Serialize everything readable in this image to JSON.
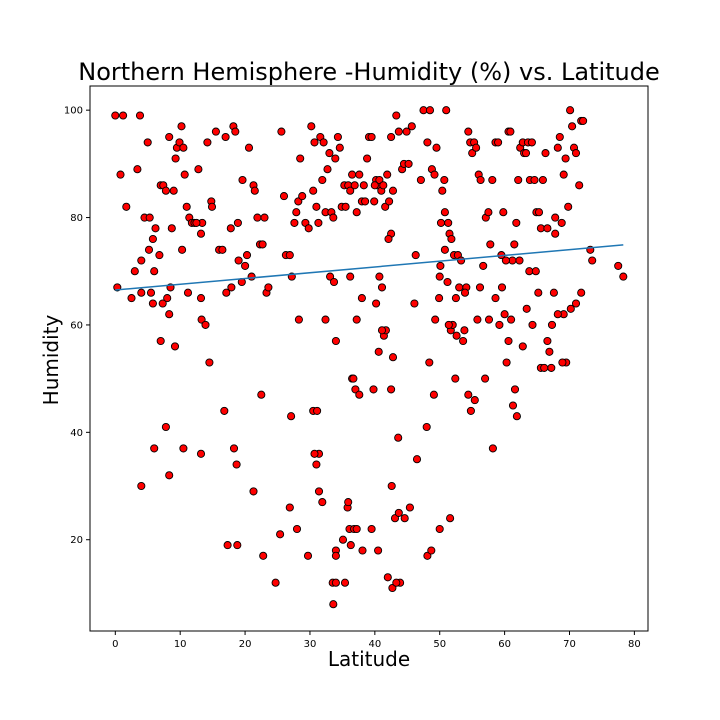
{
  "chart_data": {
    "type": "scatter",
    "title": "Northern Hemisphere -Humidity (%) vs. Latitude",
    "xlabel": "Latitude",
    "ylabel": "Humidity",
    "xlim": [
      -3.9,
      82.1
    ],
    "ylim": [
      3.0,
      104.5
    ],
    "xticks": [
      0,
      10,
      20,
      30,
      40,
      50,
      60,
      70,
      80
    ],
    "yticks": [
      20,
      40,
      60,
      80,
      100
    ],
    "grid": false,
    "marker_color": "#ff0000",
    "marker_edge_color": "#000000",
    "regression": {
      "x": [
        0.0,
        78.3
      ],
      "y": [
        66.5,
        74.9
      ],
      "color": "#1f77b4"
    },
    "points": [
      [
        0.0,
        99
      ],
      [
        1.2,
        99
      ],
      [
        3.8,
        99
      ],
      [
        0.3,
        67
      ],
      [
        0.8,
        88
      ],
      [
        1.7,
        82
      ],
      [
        2.5,
        65
      ],
      [
        3.0,
        70
      ],
      [
        3.4,
        89
      ],
      [
        4.0,
        72
      ],
      [
        4.5,
        80
      ],
      [
        5.0,
        94
      ],
      [
        5.3,
        80
      ],
      [
        5.8,
        76
      ],
      [
        5.2,
        74
      ],
      [
        6.2,
        78
      ],
      [
        6.8,
        73
      ],
      [
        7.0,
        86
      ],
      [
        7.4,
        86
      ],
      [
        7.8,
        85
      ],
      [
        8.0,
        65
      ],
      [
        8.3,
        95
      ],
      [
        8.7,
        78
      ],
      [
        9.0,
        85
      ],
      [
        9.3,
        91
      ],
      [
        9.5,
        93
      ],
      [
        9.9,
        94
      ],
      [
        10.2,
        97
      ],
      [
        10.5,
        93
      ],
      [
        10.7,
        88
      ],
      [
        11.0,
        82
      ],
      [
        11.4,
        80
      ],
      [
        11.8,
        79
      ],
      [
        12.2,
        79
      ],
      [
        12.8,
        89
      ],
      [
        13.2,
        77
      ],
      [
        13.4,
        79
      ],
      [
        14.2,
        94
      ],
      [
        14.8,
        83
      ],
      [
        14.9,
        82
      ],
      [
        15.5,
        96
      ],
      [
        16.0,
        74
      ],
      [
        16.5,
        74
      ],
      [
        17.0,
        95
      ],
      [
        17.8,
        78
      ],
      [
        18.2,
        97
      ],
      [
        18.5,
        96
      ],
      [
        18.9,
        79
      ],
      [
        19.6,
        87
      ],
      [
        20.0,
        71
      ],
      [
        20.3,
        73
      ],
      [
        20.6,
        93
      ],
      [
        21.0,
        69
      ],
      [
        21.3,
        86
      ],
      [
        21.5,
        85
      ],
      [
        21.9,
        80
      ],
      [
        22.3,
        75
      ],
      [
        22.7,
        75
      ],
      [
        23.0,
        80
      ],
      [
        23.3,
        66
      ],
      [
        23.6,
        67
      ],
      [
        5.5,
        66
      ],
      [
        6.0,
        70
      ],
      [
        4.0,
        66
      ],
      [
        5.8,
        64
      ],
      [
        7.3,
        64
      ],
      [
        7.0,
        57
      ],
      [
        8.5,
        67
      ],
      [
        8.3,
        62
      ],
      [
        9.2,
        56
      ],
      [
        10.3,
        74
      ],
      [
        11.2,
        66
      ],
      [
        12.5,
        79
      ],
      [
        13.2,
        65
      ],
      [
        13.3,
        61
      ],
      [
        13.9,
        60
      ],
      [
        14.5,
        53
      ],
      [
        17.1,
        66
      ],
      [
        17.9,
        67
      ],
      [
        19.0,
        72
      ],
      [
        19.5,
        68
      ],
      [
        16.8,
        44
      ],
      [
        6.0,
        37
      ],
      [
        7.8,
        41
      ],
      [
        10.5,
        37
      ],
      [
        13.2,
        36
      ],
      [
        18.3,
        37
      ],
      [
        18.7,
        34
      ],
      [
        22.5,
        47
      ],
      [
        4.0,
        30
      ],
      [
        8.3,
        32
      ],
      [
        21.3,
        29
      ],
      [
        17.3,
        19
      ],
      [
        18.8,
        19
      ],
      [
        22.8,
        17
      ],
      [
        24.7,
        12
      ],
      [
        25.4,
        21
      ],
      [
        25.6,
        96
      ],
      [
        26.0,
        84
      ],
      [
        26.3,
        73
      ],
      [
        26.9,
        73
      ],
      [
        27.2,
        69
      ],
      [
        27.6,
        79
      ],
      [
        27.9,
        81
      ],
      [
        28.2,
        83
      ],
      [
        28.5,
        91
      ],
      [
        28.8,
        84
      ],
      [
        29.3,
        79
      ],
      [
        29.8,
        78
      ],
      [
        30.2,
        97
      ],
      [
        30.5,
        85
      ],
      [
        30.7,
        94
      ],
      [
        31.0,
        82
      ],
      [
        31.3,
        79
      ],
      [
        31.6,
        95
      ],
      [
        31.9,
        87
      ],
      [
        32.1,
        94
      ],
      [
        32.4,
        81
      ],
      [
        32.7,
        89
      ],
      [
        33.0,
        92
      ],
      [
        33.3,
        81
      ],
      [
        33.6,
        80
      ],
      [
        33.9,
        91
      ],
      [
        34.3,
        95
      ],
      [
        34.6,
        93
      ],
      [
        34.9,
        82
      ],
      [
        35.3,
        86
      ],
      [
        35.5,
        82
      ],
      [
        35.9,
        86
      ],
      [
        36.2,
        85
      ],
      [
        36.5,
        88
      ],
      [
        36.9,
        86
      ],
      [
        37.2,
        81
      ],
      [
        37.6,
        88
      ],
      [
        38.0,
        83
      ],
      [
        38.3,
        86
      ],
      [
        38.8,
        91
      ],
      [
        39.1,
        95
      ],
      [
        39.5,
        95
      ],
      [
        39.9,
        83
      ],
      [
        40.2,
        87
      ],
      [
        40.4,
        86
      ],
      [
        40.7,
        87
      ],
      [
        41.0,
        85
      ],
      [
        41.3,
        86
      ],
      [
        41.6,
        82
      ],
      [
        41.9,
        88
      ],
      [
        42.2,
        83
      ],
      [
        42.5,
        95
      ],
      [
        42.8,
        85
      ],
      [
        43.3,
        99
      ],
      [
        43.7,
        96
      ],
      [
        44.2,
        89
      ],
      [
        44.5,
        90
      ],
      [
        44.9,
        96
      ],
      [
        45.2,
        90
      ],
      [
        45.7,
        97
      ],
      [
        46.3,
        73
      ],
      [
        47.1,
        87
      ],
      [
        47.5,
        100
      ],
      [
        48.1,
        94
      ],
      [
        48.5,
        100
      ],
      [
        48.8,
        89
      ],
      [
        49.2,
        88
      ],
      [
        49.5,
        93
      ],
      [
        33.1,
        69
      ],
      [
        33.7,
        68
      ],
      [
        34.0,
        57
      ],
      [
        36.2,
        69
      ],
      [
        37.2,
        61
      ],
      [
        38.0,
        65
      ],
      [
        40.2,
        64
      ],
      [
        40.7,
        69
      ],
      [
        41.1,
        67
      ],
      [
        42.5,
        77
      ],
      [
        42.1,
        76
      ],
      [
        41.4,
        58
      ],
      [
        41.7,
        59
      ],
      [
        38.5,
        83
      ],
      [
        40.0,
        86
      ],
      [
        27.1,
        43
      ],
      [
        28.3,
        61
      ],
      [
        29.7,
        17
      ],
      [
        30.5,
        44
      ],
      [
        31.1,
        44
      ],
      [
        31.0,
        34
      ],
      [
        31.4,
        36
      ],
      [
        31.9,
        27
      ],
      [
        32.4,
        61
      ],
      [
        31.4,
        29
      ],
      [
        26.9,
        26
      ],
      [
        28.0,
        22
      ],
      [
        30.7,
        36
      ],
      [
        35.8,
        26
      ],
      [
        35.9,
        27
      ],
      [
        36.5,
        50
      ],
      [
        36.7,
        50
      ],
      [
        37.0,
        48
      ],
      [
        37.6,
        47
      ],
      [
        39.8,
        48
      ],
      [
        40.6,
        55
      ],
      [
        41.1,
        59
      ],
      [
        42.5,
        48
      ],
      [
        42.8,
        54
      ],
      [
        43.6,
        39
      ],
      [
        46.1,
        64
      ],
      [
        46.5,
        35
      ],
      [
        48.0,
        41
      ],
      [
        48.4,
        53
      ],
      [
        49.1,
        47
      ],
      [
        49.3,
        61
      ],
      [
        49.9,
        65
      ],
      [
        36.1,
        22
      ],
      [
        36.8,
        22
      ],
      [
        36.3,
        19
      ],
      [
        37.2,
        22
      ],
      [
        38.1,
        18
      ],
      [
        39.5,
        22
      ],
      [
        40.5,
        18
      ],
      [
        42.0,
        13
      ],
      [
        42.6,
        30
      ],
      [
        43.1,
        24
      ],
      [
        43.7,
        25
      ],
      [
        43.9,
        12
      ],
      [
        44.6,
        24
      ],
      [
        45.4,
        26
      ],
      [
        33.5,
        12
      ],
      [
        34.0,
        18
      ],
      [
        34.0,
        17
      ],
      [
        35.4,
        12
      ],
      [
        33.6,
        8
      ],
      [
        34.0,
        12
      ],
      [
        35.1,
        20
      ],
      [
        48.1,
        17
      ],
      [
        48.7,
        18
      ],
      [
        50.0,
        22
      ],
      [
        51.6,
        24
      ],
      [
        52.4,
        50
      ],
      [
        42.7,
        11
      ],
      [
        43.3,
        12
      ],
      [
        50.0,
        69
      ],
      [
        50.1,
        71
      ],
      [
        50.4,
        85
      ],
      [
        50.7,
        87
      ],
      [
        51.0,
        100
      ],
      [
        51.3,
        79
      ],
      [
        51.5,
        77
      ],
      [
        51.8,
        76
      ],
      [
        52.2,
        73
      ],
      [
        52.5,
        65
      ],
      [
        52.8,
        73
      ],
      [
        53.3,
        72
      ],
      [
        53.8,
        59
      ],
      [
        54.1,
        67
      ],
      [
        54.4,
        96
      ],
      [
        54.7,
        94
      ],
      [
        55.0,
        92
      ],
      [
        55.3,
        94
      ],
      [
        55.6,
        93
      ],
      [
        56.0,
        88
      ],
      [
        56.3,
        87
      ],
      [
        56.7,
        71
      ],
      [
        57.1,
        80
      ],
      [
        57.5,
        81
      ],
      [
        57.8,
        75
      ],
      [
        58.1,
        87
      ],
      [
        58.6,
        94
      ],
      [
        59.0,
        94
      ],
      [
        59.5,
        73
      ],
      [
        59.8,
        81
      ],
      [
        60.0,
        62
      ],
      [
        60.3,
        53
      ],
      [
        60.6,
        96
      ],
      [
        60.9,
        96
      ],
      [
        61.2,
        72
      ],
      [
        61.5,
        75
      ],
      [
        61.8,
        79
      ],
      [
        62.1,
        87
      ],
      [
        62.4,
        93
      ],
      [
        62.8,
        94
      ],
      [
        63.0,
        92
      ],
      [
        63.3,
        92
      ],
      [
        63.6,
        94
      ],
      [
        63.9,
        87
      ],
      [
        64.2,
        94
      ],
      [
        64.6,
        87
      ],
      [
        64.9,
        81
      ],
      [
        65.3,
        81
      ],
      [
        65.6,
        78
      ],
      [
        65.9,
        87
      ],
      [
        66.3,
        92
      ],
      [
        66.6,
        78
      ],
      [
        66.9,
        55
      ],
      [
        67.2,
        52
      ],
      [
        67.6,
        66
      ],
      [
        67.8,
        77
      ],
      [
        68.2,
        93
      ],
      [
        68.5,
        95
      ],
      [
        68.8,
        79
      ],
      [
        69.1,
        88
      ],
      [
        69.4,
        91
      ],
      [
        69.8,
        82
      ],
      [
        70.1,
        100
      ],
      [
        70.4,
        97
      ],
      [
        70.7,
        93
      ],
      [
        71.0,
        92
      ],
      [
        71.5,
        86
      ],
      [
        71.8,
        98
      ],
      [
        72.1,
        98
      ],
      [
        73.2,
        74
      ],
      [
        73.5,
        72
      ],
      [
        69.1,
        62
      ],
      [
        69.5,
        53
      ],
      [
        70.2,
        63
      ],
      [
        71.0,
        64
      ],
      [
        71.8,
        66
      ],
      [
        77.5,
        71
      ],
      [
        78.3,
        69
      ],
      [
        50.2,
        79
      ],
      [
        50.8,
        74
      ],
      [
        51.2,
        68
      ],
      [
        51.7,
        59
      ],
      [
        52.0,
        60
      ],
      [
        52.6,
        58
      ],
      [
        53.0,
        67
      ],
      [
        53.6,
        57
      ],
      [
        53.9,
        66
      ],
      [
        54.4,
        47
      ],
      [
        54.8,
        44
      ],
      [
        55.4,
        46
      ],
      [
        55.8,
        61
      ],
      [
        56.2,
        67
      ],
      [
        57.0,
        50
      ],
      [
        57.6,
        61
      ],
      [
        58.2,
        37
      ],
      [
        58.6,
        65
      ],
      [
        59.2,
        60
      ],
      [
        59.6,
        67
      ],
      [
        60.2,
        72
      ],
      [
        60.6,
        57
      ],
      [
        61.0,
        61
      ],
      [
        61.3,
        45
      ],
      [
        61.6,
        48
      ],
      [
        61.9,
        43
      ],
      [
        62.3,
        72
      ],
      [
        62.8,
        56
      ],
      [
        63.4,
        63
      ],
      [
        63.8,
        70
      ],
      [
        64.3,
        60
      ],
      [
        64.8,
        70
      ],
      [
        65.2,
        66
      ],
      [
        65.6,
        52
      ],
      [
        66.1,
        52
      ],
      [
        66.6,
        57
      ],
      [
        67.3,
        60
      ],
      [
        67.8,
        80
      ],
      [
        68.2,
        62
      ],
      [
        68.9,
        53
      ],
      [
        50.8,
        81
      ],
      [
        51.4,
        60
      ]
    ]
  }
}
